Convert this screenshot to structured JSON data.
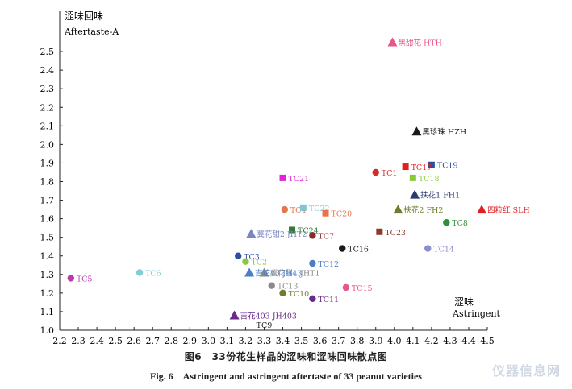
{
  "chart_data": {
    "type": "scatter",
    "ylabel_cn": "涩味回味",
    "ylabel_en": "Aftertaste-A",
    "xlabel_cn": "涩味",
    "xlabel_en": "Astringent",
    "xlim": [
      2.2,
      4.5
    ],
    "ylim": [
      1.0,
      2.6
    ],
    "xticks": [
      "2.2",
      "2.3",
      "2.4",
      "2.5",
      "2.6",
      "2.7",
      "2.8",
      "2.9",
      "3.0",
      "3.1",
      "3.2",
      "3.3",
      "3.4",
      "3.5",
      "3.6",
      "3.7",
      "3.8",
      "3.9",
      "4.0",
      "4.1",
      "4.2",
      "4.3",
      "4.4",
      "4.5"
    ],
    "yticks": [
      "1.0",
      "1.1",
      "1.2",
      "1.3",
      "1.4",
      "1.5",
      "1.6",
      "1.7",
      "1.8",
      "1.9",
      "2.0",
      "2.1",
      "2.2",
      "2.3",
      "2.4",
      "2.5"
    ],
    "grid": false,
    "points": [
      {
        "label": "黑甜花 HTH",
        "x": 3.99,
        "y": 2.55,
        "marker": "triangle",
        "color": "#e8578c"
      },
      {
        "label": "黑珍珠 HZH",
        "x": 4.12,
        "y": 2.07,
        "marker": "triangle",
        "color": "#1a1a1a"
      },
      {
        "label": "TC19",
        "x": 4.2,
        "y": 1.89,
        "marker": "square",
        "color": "#2b4fa3"
      },
      {
        "label": "TC17",
        "x": 4.06,
        "y": 1.88,
        "marker": "square",
        "color": "#e02020"
      },
      {
        "label": "TC1",
        "x": 3.9,
        "y": 1.85,
        "marker": "circle",
        "color": "#d42b2b"
      },
      {
        "label": "TC18",
        "x": 4.1,
        "y": 1.82,
        "marker": "square",
        "color": "#8bc83a"
      },
      {
        "label": "TC21",
        "x": 3.4,
        "y": 1.82,
        "marker": "square",
        "color": "#e024d6"
      },
      {
        "label": "扶花1 FH1",
        "x": 4.11,
        "y": 1.73,
        "marker": "triangle",
        "color": "#2a3b6f"
      },
      {
        "label": "TC4",
        "x": 3.41,
        "y": 1.65,
        "marker": "circle",
        "color": "#e6754a"
      },
      {
        "label": "TC22",
        "x": 3.51,
        "y": 1.66,
        "marker": "square",
        "color": "#7fc6d4"
      },
      {
        "label": "TC20",
        "x": 3.63,
        "y": 1.63,
        "marker": "square",
        "color": "#e6754a"
      },
      {
        "label": "扶花2 FH2",
        "x": 4.02,
        "y": 1.65,
        "marker": "triangle",
        "color": "#6b7f2a"
      },
      {
        "label": "四粒红 SLH",
        "x": 4.47,
        "y": 1.65,
        "marker": "triangle",
        "color": "#e02020"
      },
      {
        "label": "TC8",
        "x": 4.28,
        "y": 1.58,
        "marker": "circle",
        "color": "#2f8f3a"
      },
      {
        "label": "TC24",
        "x": 3.45,
        "y": 1.54,
        "marker": "square",
        "color": "#2f7a3a"
      },
      {
        "label": "TC23",
        "x": 3.92,
        "y": 1.53,
        "marker": "square",
        "color": "#8b3a2a"
      },
      {
        "label": "冀花甜2 JHT2",
        "x": 3.23,
        "y": 1.52,
        "marker": "triangle",
        "color": "#7a86c2"
      },
      {
        "label": "TC7",
        "x": 3.56,
        "y": 1.51,
        "marker": "circle",
        "color": "#8b2a2a"
      },
      {
        "label": "TC16",
        "x": 3.72,
        "y": 1.44,
        "marker": "circle",
        "color": "#1a1a1a"
      },
      {
        "label": "TC14",
        "x": 4.18,
        "y": 1.44,
        "marker": "circle",
        "color": "#8a8fd0"
      },
      {
        "label": "TC3",
        "x": 3.16,
        "y": 1.4,
        "marker": "circle",
        "color": "#2b4fa3"
      },
      {
        "label": "TC12",
        "x": 3.56,
        "y": 1.36,
        "marker": "circle",
        "color": "#4a7fc8"
      },
      {
        "label": "TC2",
        "x": 3.2,
        "y": 1.37,
        "marker": "circle",
        "color": "#8bc83a"
      },
      {
        "label": "TC6",
        "x": 2.63,
        "y": 1.31,
        "marker": "circle",
        "color": "#7fd0d6"
      },
      {
        "label": "TC5",
        "x": 2.26,
        "y": 1.28,
        "marker": "circle",
        "color": "#b83ab0"
      },
      {
        "label": "冀花甜1 JHT1",
        "x": 3.3,
        "y": 1.31,
        "marker": "triangle",
        "color": "#8a8a8a"
      },
      {
        "label": "吉花43 JH43",
        "x": 3.22,
        "y": 1.31,
        "marker": "triangle",
        "color": "#4a7fc8"
      },
      {
        "label": "TC13",
        "x": 3.34,
        "y": 1.24,
        "marker": "circle",
        "color": "#8a8a8a"
      },
      {
        "label": "TC15",
        "x": 3.74,
        "y": 1.23,
        "marker": "circle",
        "color": "#e8578c"
      },
      {
        "label": "TC10",
        "x": 3.4,
        "y": 1.2,
        "marker": "circle",
        "color": "#6b7f2a"
      },
      {
        "label": "TC11",
        "x": 3.56,
        "y": 1.17,
        "marker": "circle",
        "color": "#6a2a8a"
      },
      {
        "label": "吉花403 JH403",
        "x": 3.14,
        "y": 1.08,
        "marker": "triangle",
        "color": "#6a2a8a"
      },
      {
        "label": "TC9",
        "x": 3.3,
        "y": 1.03,
        "marker": "none",
        "color": "#222222"
      }
    ]
  },
  "caption": {
    "cn": "图6　33份花生样品的涩味和涩味回味散点图",
    "en": "Fig. 6　Astringent and astringent aftertaste of 33 peanut varieties"
  },
  "watermark": "仪器信息网"
}
